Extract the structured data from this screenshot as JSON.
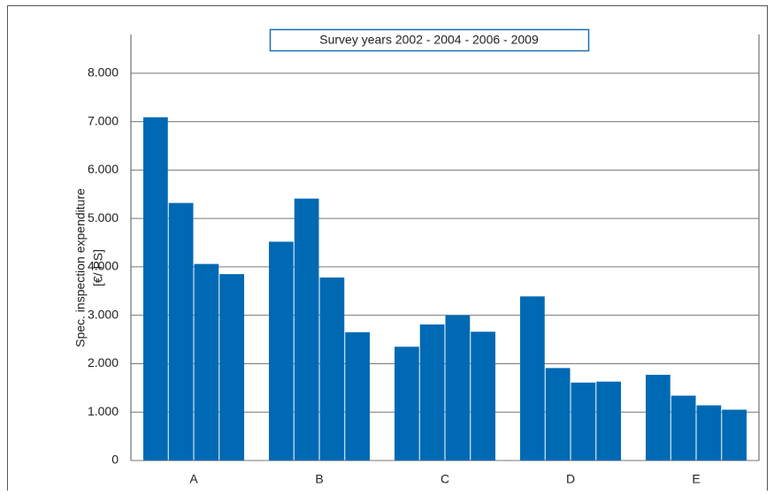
{
  "chart_data": {
    "type": "bar",
    "legend_title": "Survey years 2002 - 2004 - 2006 - 2009",
    "y_label": [
      "Spec. inspection expenditure",
      "[€/ PS]"
    ],
    "categories": [
      "A",
      "B",
      "C",
      "D",
      "E"
    ],
    "series": [
      {
        "color": "#0069b4",
        "values": [
          7090,
          4520,
          2350,
          3390,
          1770
        ]
      },
      {
        "color": "#0069b4",
        "values": [
          5320,
          5410,
          2810,
          1910,
          1340
        ]
      },
      {
        "color": "#0069b4",
        "values": [
          4060,
          3780,
          3000,
          1610,
          1140
        ]
      },
      {
        "color": "#0069b4",
        "values": [
          3850,
          2650,
          2660,
          1630,
          1050
        ]
      }
    ],
    "ylim": [
      0,
      8800
    ],
    "yticks": [
      0,
      {
        "value": 1000,
        "label": "1.000"
      },
      {
        "value": 2000,
        "label": "2.000"
      },
      {
        "value": 3000,
        "label": "3.000"
      },
      {
        "value": 4000,
        "label": "4.000"
      },
      {
        "value": 5000,
        "label": "5.000"
      },
      {
        "value": 6000,
        "label": "6.000"
      },
      {
        "value": 7000,
        "label": "7.000"
      },
      {
        "value": 8000,
        "label": "8.000"
      }
    ],
    "grid": true
  }
}
